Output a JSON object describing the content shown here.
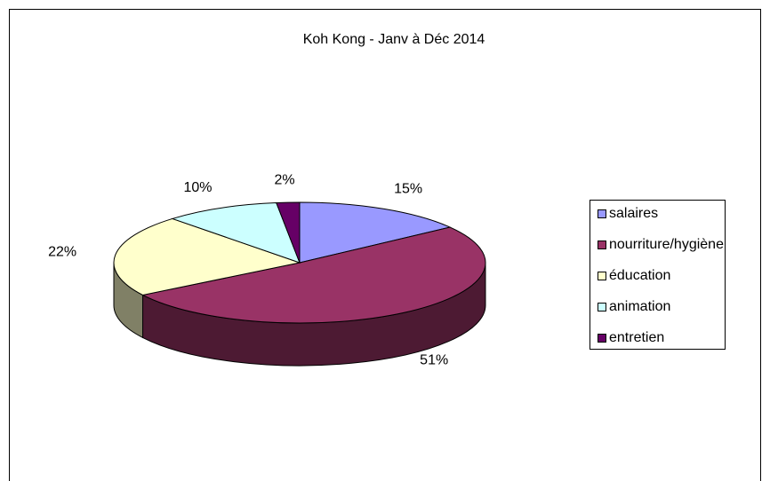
{
  "chart_data": {
    "type": "pie",
    "title": "Koh Kong - Janv à Déc 2014",
    "categories": [
      "salaires",
      "nourriture/hygiène",
      "éducation",
      "animation",
      "entretien"
    ],
    "values": [
      15,
      51,
      22,
      10,
      2
    ],
    "value_labels": [
      "15%",
      "51%",
      "22%",
      "10%",
      "2%"
    ],
    "colors": [
      "#9999ff",
      "#993366",
      "#ffffcc",
      "#ccffff",
      "#660066"
    ]
  }
}
